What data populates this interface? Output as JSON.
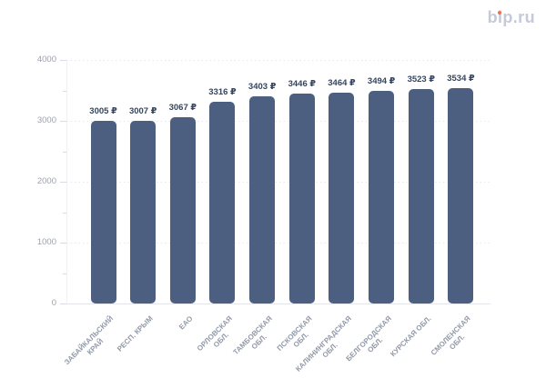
{
  "logo": {
    "text": "bip.ru",
    "color": "#c5cada",
    "dot_color": "#ee7152"
  },
  "chart_data": {
    "type": "bar",
    "title": "",
    "unit": "₽",
    "categories": [
      "ЗАБАЙКАЛЬСКИЙ КРАЙ",
      "РЕСП. КРЫМ",
      "ЕАО",
      "ОРЛОВСКАЯ ОБЛ.",
      "ТАМБОВСКАЯ ОБЛ.",
      "ПСКОВСКАЯ ОБЛ.",
      "КАЛИНИНГРАДСКАЯ ОБЛ.",
      "БЕЛГОРОДСКАЯ ОБЛ.",
      "КУРСКАЯ ОБЛ.",
      "СМОЛЕНСКАЯ ОБЛ."
    ],
    "category_lines": [
      [
        "ЗАБАЙКАЛЬСКИЙ",
        "КРАЙ"
      ],
      [
        "РЕСП. КРЫМ"
      ],
      [
        "ЕАО"
      ],
      [
        "ОРЛОВСКАЯ",
        "ОБЛ."
      ],
      [
        "ТАМБОВСКАЯ",
        "ОБЛ."
      ],
      [
        "ПСКОВСКАЯ",
        "ОБЛ."
      ],
      [
        "КАЛИНИНГРАДСКАЯ",
        "ОБЛ."
      ],
      [
        "БЕЛГОРОДСКАЯ",
        "ОБЛ."
      ],
      [
        "КУРСКАЯ ОБЛ."
      ],
      [
        "СМОЛЕНСКАЯ",
        "ОБЛ."
      ]
    ],
    "values": [
      3005,
      3007,
      3067,
      3316,
      3403,
      3446,
      3464,
      3494,
      3523,
      3534
    ],
    "value_labels": [
      "3005 ₽",
      "3007 ₽",
      "3067 ₽",
      "3316 ₽",
      "3403 ₽",
      "3446 ₽",
      "3464 ₽",
      "3494 ₽",
      "3523 ₽",
      "3534 ₽"
    ],
    "xlabel": "",
    "ylabel": "",
    "ylim": [
      0,
      4000
    ],
    "yticks": [
      0,
      1000,
      2000,
      3000,
      4000
    ],
    "ytick_labels": [
      "0",
      "1000",
      "2000",
      "3000",
      "4000"
    ],
    "minor_tick_interval": 500,
    "grid": "horizontal-dotted",
    "legend": "none",
    "colors": {
      "bar": "#4c5f80",
      "value_label": "#35455f",
      "y_label": "#9ba1ae",
      "x_label": "#9199a9",
      "gridline": "#e6e8ee",
      "axis_line": "#e3e5ea",
      "tick": "#d9dce3"
    }
  }
}
